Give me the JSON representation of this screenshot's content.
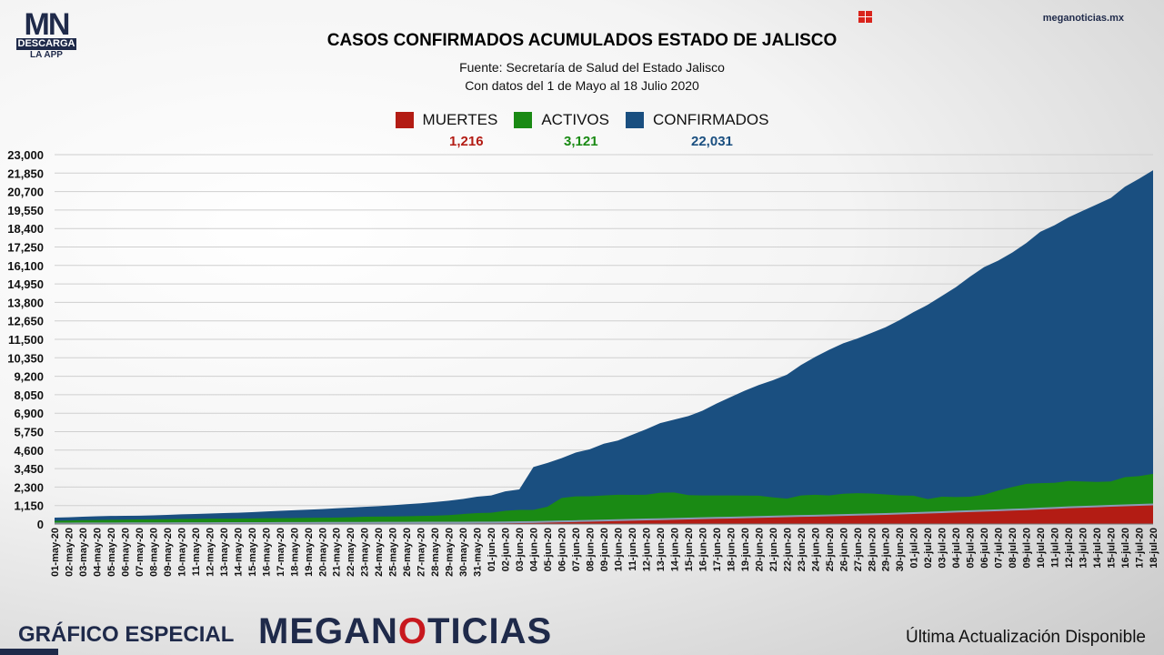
{
  "logo": {
    "mark": "MN",
    "band": "DESCARGA",
    "sub": "LA APP"
  },
  "site": "meganoticias.mx",
  "title": "CASOS CONFIRMADOS ACUMULADOS ESTADO DE JALISCO",
  "source": "Fuente: Secretaría de Salud del Estado Jalisco",
  "period": "Con datos del 1 de Mayo al 18 Julio 2020",
  "legend": [
    {
      "label": "MUERTES",
      "total": "1,216",
      "color": "#b31c14"
    },
    {
      "label": "ACTIVOS",
      "total": "3,121",
      "color": "#1a8a14"
    },
    {
      "label": "CONFIRMADOS",
      "total": "22,031",
      "color": "#1a4f80"
    }
  ],
  "footer": {
    "left": "GRÁFICO ESPECIAL",
    "brand_a": "MEGAN",
    "brand_o": "O",
    "brand_b": "TICIAS",
    "right": "Última Actualización Disponible"
  },
  "chart_data": {
    "type": "area",
    "ylim": [
      0,
      23000
    ],
    "yticks": [
      "0",
      "1,150",
      "2,300",
      "3,450",
      "4,600",
      "5,750",
      "6,900",
      "8,050",
      "9,200",
      "10,350",
      "11,500",
      "12,650",
      "13,800",
      "14,950",
      "16,100",
      "17,250",
      "18,400",
      "19,550",
      "20,700",
      "21,850",
      "23,000"
    ],
    "categories": [
      "01-may-20",
      "02-may-20",
      "03-may-20",
      "04-may-20",
      "05-may-20",
      "06-may-20",
      "07-may-20",
      "08-may-20",
      "09-may-20",
      "10-may-20",
      "11-may-20",
      "12-may-20",
      "13-may-20",
      "14-may-20",
      "15-may-20",
      "16-may-20",
      "17-may-20",
      "18-may-20",
      "19-may-20",
      "20-may-20",
      "21-may-20",
      "22-may-20",
      "23-may-20",
      "24-may-20",
      "25-may-20",
      "26-may-20",
      "27-may-20",
      "28-may-20",
      "29-may-20",
      "30-may-20",
      "31-may-20",
      "01-jun-20",
      "02-jun-20",
      "03-jun-20",
      "04-jun-20",
      "05-jun-20",
      "06-jun-20",
      "07-jun-20",
      "08-jun-20",
      "09-jun-20",
      "10-jun-20",
      "11-jun-20",
      "12-jun-20",
      "13-jun-20",
      "14-jun-20",
      "15-jun-20",
      "16-jun-20",
      "17-jun-20",
      "18-jun-20",
      "19-jun-20",
      "20-jun-20",
      "21-jun-20",
      "22-jun-20",
      "23-jun-20",
      "24-jun-20",
      "25-jun-20",
      "26-jun-20",
      "27-jun-20",
      "28-jun-20",
      "29-jun-20",
      "30-jun-20",
      "01-jul-20",
      "02-jul-20",
      "03-jul-20",
      "04-jul-20",
      "05-jul-20",
      "06-jul-20",
      "07-jul-20",
      "08-jul-20",
      "09-jul-20",
      "10-jul-20",
      "11-jul-20",
      "12-jul-20",
      "13-jul-20",
      "14-jul-20",
      "15-jul-20",
      "16-jul-20",
      "17-jul-20",
      "18-jul-20"
    ],
    "series": [
      {
        "name": "CONFIRMADOS",
        "color": "#1a4f80",
        "values": [
          400,
          420,
          450,
          480,
          500,
          510,
          520,
          540,
          570,
          600,
          620,
          650,
          680,
          700,
          740,
          780,
          820,
          860,
          890,
          930,
          980,
          1020,
          1070,
          1110,
          1170,
          1230,
          1290,
          1370,
          1450,
          1560,
          1700,
          1780,
          2030,
          2150,
          3550,
          3800,
          4100,
          4450,
          4650,
          5000,
          5200,
          5550,
          5900,
          6280,
          6500,
          6720,
          7050,
          7500,
          7900,
          8300,
          8650,
          8950,
          9300,
          9900,
          10400,
          10850,
          11250,
          11550,
          11900,
          12250,
          12700,
          13200,
          13650,
          14200,
          14750,
          15400,
          16000,
          16400,
          16900,
          17500,
          18200,
          18600,
          19100,
          19500,
          19900,
          20300,
          21000,
          21500,
          22031
        ]
      },
      {
        "name": "ACTIVOS",
        "color": "#1a8a14",
        "values": [
          200,
          220,
          240,
          250,
          260,
          270,
          280,
          290,
          300,
          310,
          320,
          330,
          330,
          340,
          350,
          360,
          360,
          370,
          380,
          390,
          400,
          420,
          450,
          460,
          470,
          480,
          500,
          520,
          550,
          620,
          680,
          700,
          820,
          880,
          880,
          1080,
          1620,
          1720,
          1730,
          1780,
          1820,
          1810,
          1820,
          1950,
          1960,
          1800,
          1780,
          1780,
          1780,
          1770,
          1760,
          1660,
          1580,
          1780,
          1820,
          1780,
          1880,
          1920,
          1900,
          1840,
          1780,
          1760,
          1550,
          1700,
          1680,
          1700,
          1820,
          2080,
          2300,
          2500,
          2540,
          2560,
          2680,
          2650,
          2620,
          2650,
          2920,
          2980,
          3121
        ]
      },
      {
        "name": "MUERTES",
        "color": "#b31c14",
        "values": [
          30,
          32,
          34,
          36,
          38,
          40,
          42,
          44,
          46,
          48,
          50,
          52,
          54,
          56,
          58,
          60,
          62,
          64,
          66,
          68,
          70,
          72,
          74,
          76,
          78,
          80,
          82,
          84,
          86,
          88,
          90,
          95,
          100,
          110,
          120,
          140,
          160,
          180,
          200,
          220,
          240,
          260,
          280,
          300,
          320,
          340,
          360,
          380,
          400,
          420,
          440,
          460,
          480,
          500,
          520,
          540,
          560,
          580,
          600,
          620,
          650,
          680,
          710,
          740,
          770,
          800,
          830,
          860,
          890,
          920,
          960,
          1000,
          1040,
          1070,
          1100,
          1130,
          1160,
          1190,
          1216
        ]
      }
    ]
  }
}
